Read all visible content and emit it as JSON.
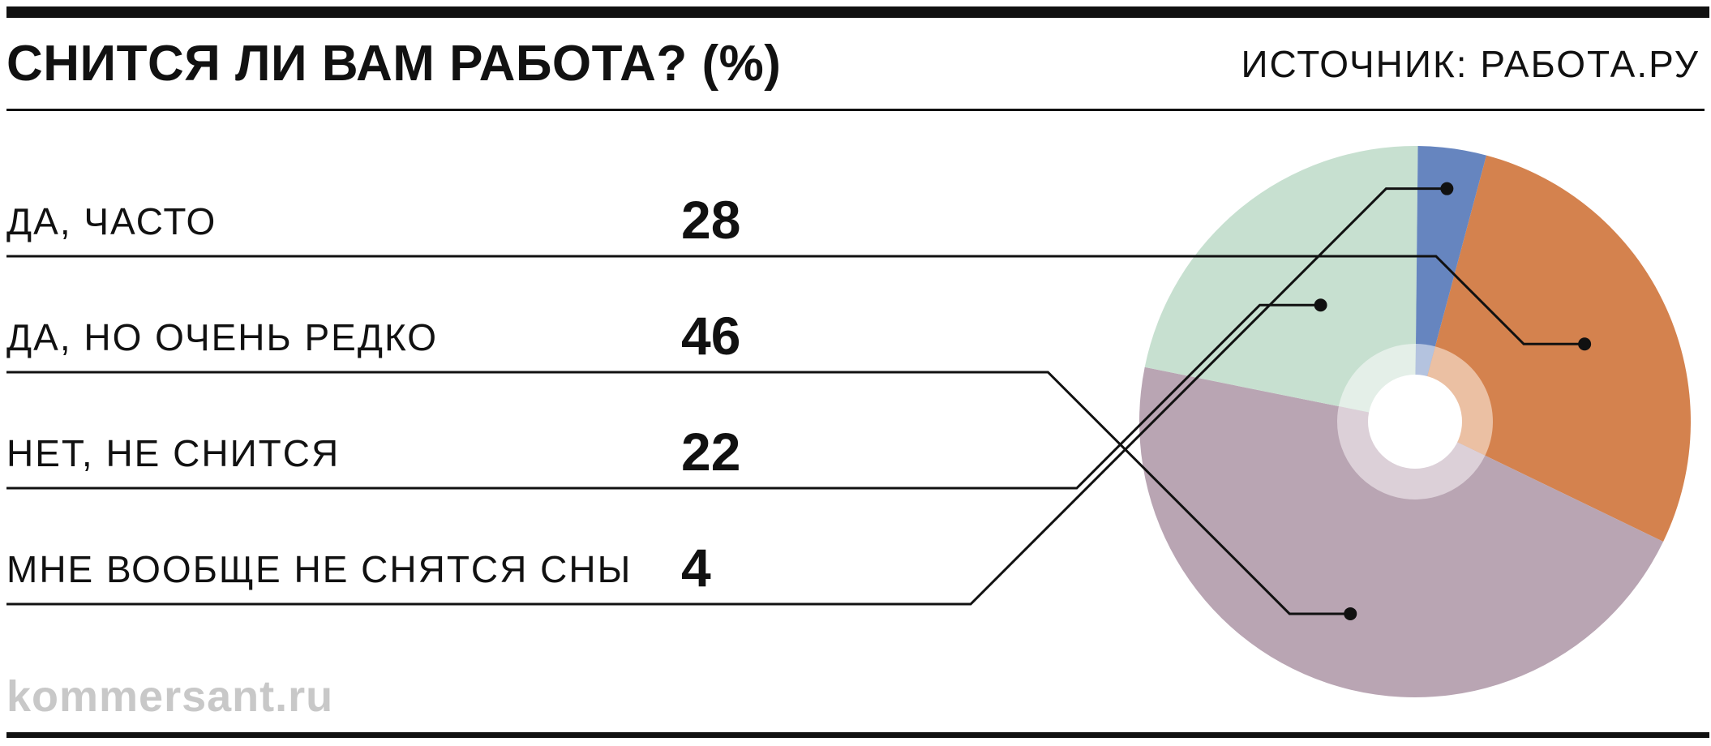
{
  "header": {
    "title": "СНИТСЯ ЛИ ВАМ РАБОТА? (%)",
    "source": "ИСТОЧНИК: РАБОТА.РУ"
  },
  "footer": {
    "logo_text": "kommersant.ru"
  },
  "chart_data": {
    "type": "pie",
    "title": "СНИТСЯ ЛИ ВАМ РАБОТА? (%)",
    "unit": "%",
    "categories": [
      "ДА, ЧАСТО",
      "ДА, НО ОЧЕНЬ РЕДКО",
      "НЕТ, НЕ СНИТСЯ",
      "МНЕ ВООБЩЕ НЕ СНЯТСЯ СНЫ"
    ],
    "values": [
      28,
      46,
      22,
      4
    ],
    "value_labels": [
      "28",
      "46",
      "22",
      "4"
    ],
    "colors": [
      "#d4824e",
      "#b9a5b3",
      "#c7e0d0",
      "#6685bf"
    ],
    "inner_ring_colors": [
      "#ebc0a3",
      "#dcd0d8",
      "#e4efe8",
      "#b4c3df"
    ],
    "hole_color": "#ffffff",
    "start_direction": "clockwise, starting at roughly 1 o'clock",
    "legend_placement": "left, with leader lines to slices"
  }
}
